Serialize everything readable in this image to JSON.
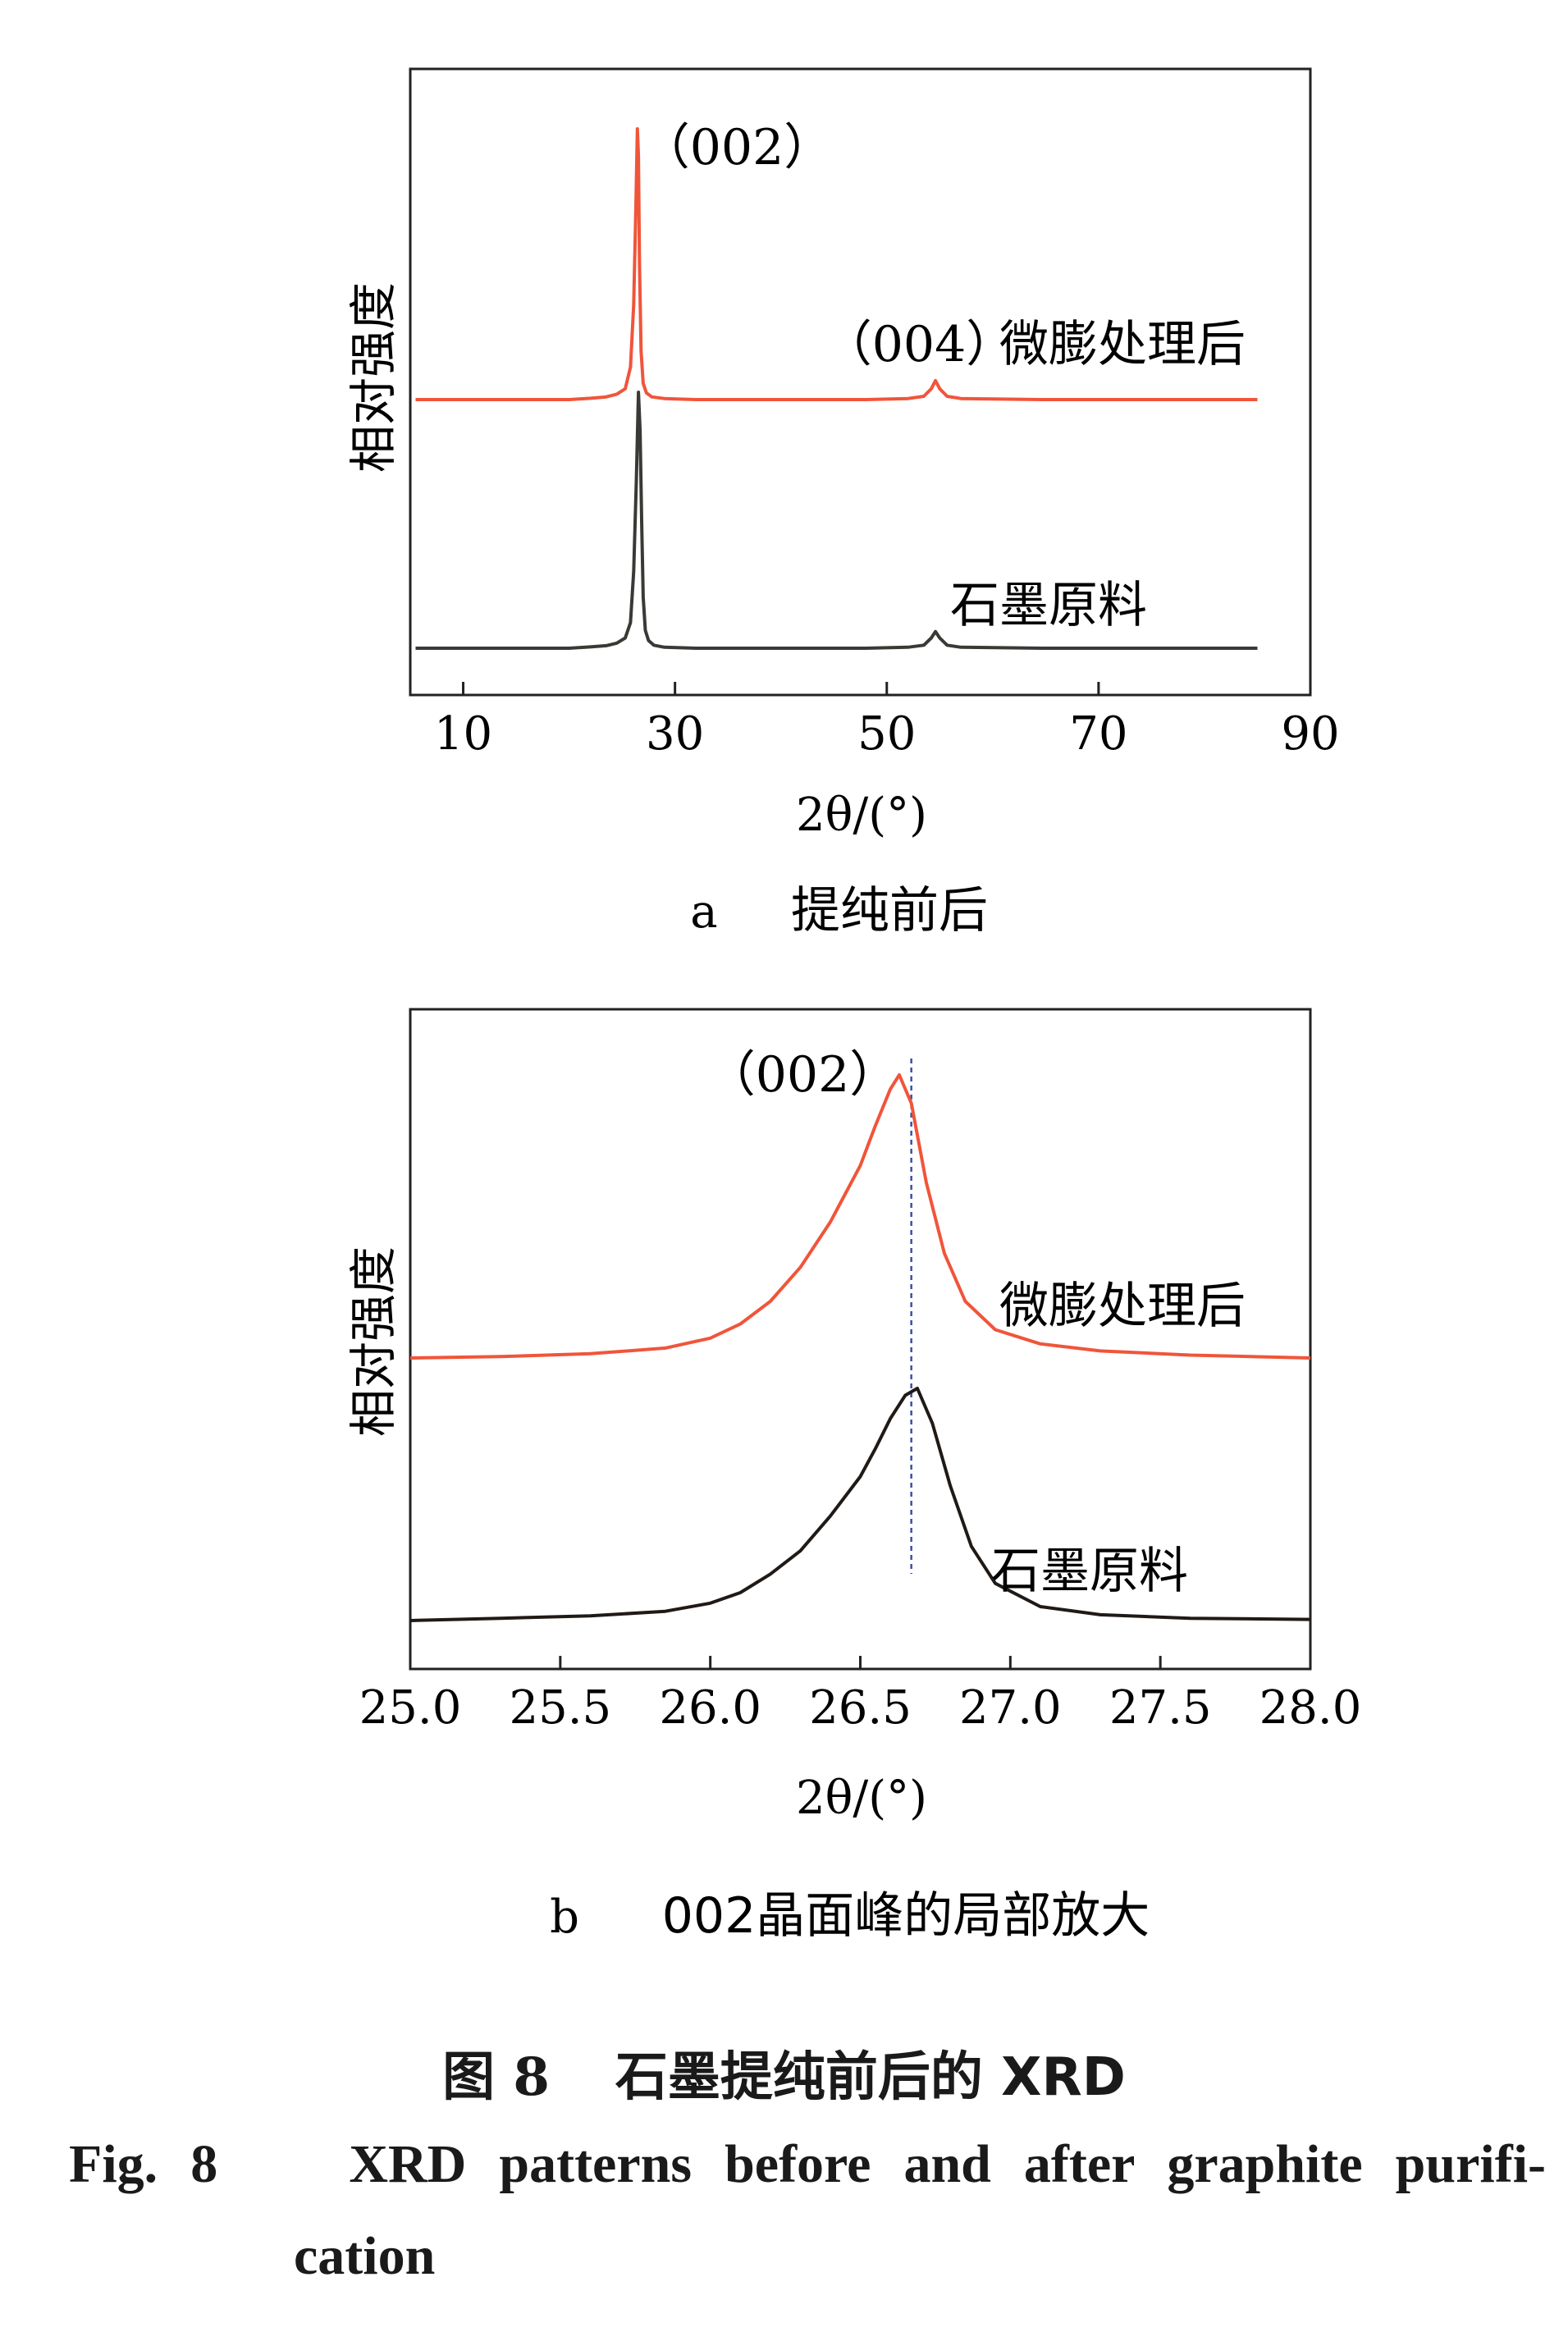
{
  "chart_data": [
    {
      "type": "line",
      "panel_label": "a",
      "panel_title": "提纯前后",
      "xlabel": "2θ/(°)",
      "ylabel": "相对强度",
      "xlim": [
        5,
        90
      ],
      "xticks": [
        10,
        30,
        50,
        70,
        90
      ],
      "y_ticks_shown": false,
      "grid": false,
      "annotations": [
        {
          "text": "（002）",
          "x": 26.5
        },
        {
          "text": "（004）",
          "x": 54.6
        }
      ],
      "series": [
        {
          "name": "微膨处理后",
          "color": "#f0553a",
          "x": [
            5.5,
            10,
            15,
            20,
            22,
            23.5,
            24.5,
            25.3,
            25.8,
            26.1,
            26.3,
            26.45,
            26.55,
            26.65,
            26.8,
            27.0,
            27.3,
            27.8,
            29,
            32,
            40,
            48,
            52,
            53.5,
            54.2,
            54.6,
            55.0,
            55.7,
            57,
            65,
            75,
            85
          ],
          "y": [
            0.0,
            0.0,
            0.0,
            0.0,
            0.005,
            0.01,
            0.02,
            0.04,
            0.12,
            0.35,
            0.7,
            1.0,
            0.9,
            0.5,
            0.18,
            0.06,
            0.025,
            0.01,
            0.004,
            0.0,
            0.0,
            0.0,
            0.004,
            0.012,
            0.04,
            0.07,
            0.04,
            0.012,
            0.004,
            0.0,
            0.0,
            0.0
          ]
        },
        {
          "name": "石墨原料",
          "color": "#3b3935",
          "x": [
            5.5,
            10,
            15,
            20,
            22,
            23.5,
            24.5,
            25.3,
            25.8,
            26.1,
            26.35,
            26.55,
            26.7,
            26.85,
            27.0,
            27.2,
            27.5,
            28.0,
            29,
            32,
            40,
            48,
            52,
            53.5,
            54.2,
            54.6,
            55.0,
            55.7,
            57,
            65,
            75,
            85
          ],
          "y": [
            0.0,
            0.0,
            0.0,
            0.0,
            0.005,
            0.01,
            0.02,
            0.04,
            0.1,
            0.3,
            0.65,
            1.0,
            0.85,
            0.5,
            0.2,
            0.07,
            0.03,
            0.012,
            0.004,
            0.0,
            0.0,
            0.0,
            0.004,
            0.012,
            0.04,
            0.065,
            0.04,
            0.012,
            0.004,
            0.0,
            0.0,
            0.0
          ]
        }
      ]
    },
    {
      "type": "line",
      "panel_label": "b",
      "panel_title": "002晶面峰的局部放大",
      "xlabel": "2θ/(°)",
      "ylabel": "相对强度",
      "xlim": [
        25.0,
        28.0
      ],
      "xticks": [
        "25.0",
        "25.5",
        "26.0",
        "26.5",
        "27.0",
        "27.5",
        "28.0"
      ],
      "y_ticks_shown": false,
      "grid": false,
      "reference_line_x": 26.67,
      "annotations": [
        {
          "text": "（002）",
          "x": 26.32
        }
      ],
      "series": [
        {
          "name": "微膨处理后",
          "color": "#f0553a",
          "x": [
            25.0,
            25.3,
            25.6,
            25.85,
            26.0,
            26.1,
            26.2,
            26.3,
            26.4,
            26.5,
            26.55,
            26.6,
            26.63,
            26.67,
            26.72,
            26.78,
            26.85,
            26.95,
            27.1,
            27.3,
            27.6,
            28.0
          ],
          "y": [
            0.0,
            0.005,
            0.015,
            0.035,
            0.07,
            0.12,
            0.2,
            0.32,
            0.48,
            0.68,
            0.82,
            0.95,
            1.0,
            0.9,
            0.62,
            0.37,
            0.2,
            0.1,
            0.05,
            0.025,
            0.01,
            0.0
          ]
        },
        {
          "name": "石墨原料",
          "color": "#201a17",
          "x": [
            25.0,
            25.3,
            25.6,
            25.85,
            26.0,
            26.1,
            26.2,
            26.3,
            26.4,
            26.5,
            26.55,
            26.6,
            26.65,
            26.69,
            26.74,
            26.8,
            26.87,
            26.95,
            27.1,
            27.3,
            27.6,
            28.0
          ],
          "y": [
            0.0,
            0.01,
            0.02,
            0.04,
            0.075,
            0.12,
            0.2,
            0.3,
            0.45,
            0.62,
            0.74,
            0.87,
            0.97,
            1.0,
            0.85,
            0.58,
            0.32,
            0.16,
            0.06,
            0.025,
            0.01,
            0.005
          ]
        }
      ]
    }
  ],
  "figure_caption": {
    "chinese_number": "图 8",
    "chinese_title": "石墨提纯前后的 XRD",
    "english_number": "Fig. 8",
    "english_title_line1": "XRD patterns before and after graphite purifi-",
    "english_title_line2": "cation"
  }
}
